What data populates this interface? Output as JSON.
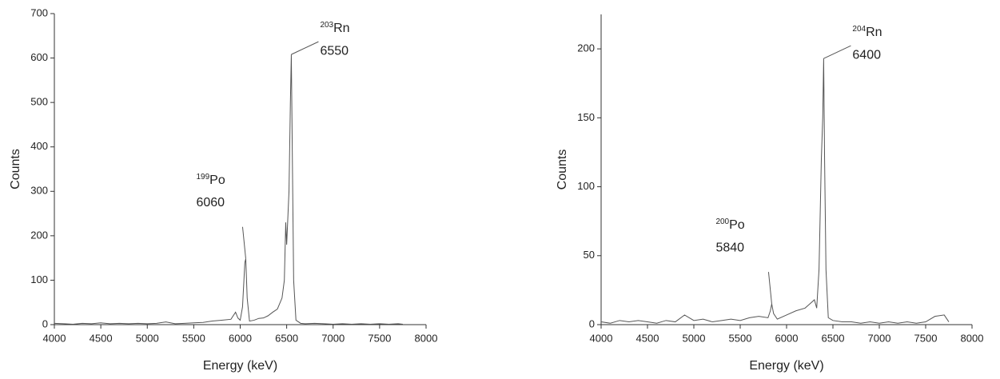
{
  "chart_data": [
    {
      "type": "line",
      "xlabel": "Energy (keV)",
      "ylabel": "Counts",
      "color": "#555555",
      "x": [
        4000,
        4100,
        4200,
        4300,
        4400,
        4500,
        4600,
        4700,
        4800,
        4900,
        5000,
        5100,
        5200,
        5300,
        5400,
        5500,
        5600,
        5700,
        5800,
        5900,
        5950,
        5975,
        6000,
        6025,
        6050,
        6060,
        6075,
        6100,
        6150,
        6200,
        6250,
        6300,
        6350,
        6400,
        6450,
        6475,
        6490,
        6500,
        6525,
        6540,
        6550,
        6560,
        6575,
        6600,
        6650,
        6700,
        6800,
        6900,
        7000,
        7100,
        7200,
        7300,
        7400,
        7500,
        7600,
        7700,
        7750
      ],
      "values": [
        3,
        2,
        1,
        3,
        2,
        4,
        2,
        3,
        2,
        3,
        2,
        3,
        6,
        2,
        3,
        4,
        5,
        8,
        10,
        12,
        28,
        15,
        10,
        40,
        140,
        148,
        60,
        8,
        10,
        14,
        15,
        20,
        28,
        35,
        60,
        100,
        230,
        180,
        300,
        500,
        608,
        400,
        100,
        10,
        3,
        2,
        3,
        2,
        1,
        2,
        1,
        2,
        1,
        2,
        1,
        2,
        1
      ],
      "xlim": [
        4000,
        8000
      ],
      "xticks": [
        4000,
        4500,
        5000,
        5500,
        6000,
        6500,
        7000,
        7500,
        8000
      ],
      "ylim": [
        0,
        700
      ],
      "yticks": [
        0,
        100,
        200,
        300,
        400,
        500,
        600,
        700
      ],
      "annotations": [
        {
          "mass": "203",
          "element": "Rn",
          "energy": 6550
        },
        {
          "mass": "199",
          "element": "Po",
          "energy": 6060
        }
      ]
    },
    {
      "type": "line",
      "xlabel": "Energy (keV)",
      "ylabel": "Counts",
      "color": "#555555",
      "x": [
        4000,
        4100,
        4200,
        4300,
        4400,
        4500,
        4600,
        4700,
        4800,
        4900,
        5000,
        5100,
        5200,
        5300,
        5400,
        5500,
        5600,
        5700,
        5800,
        5825,
        5840,
        5860,
        5900,
        6000,
        6100,
        6200,
        6250,
        6300,
        6325,
        6350,
        6375,
        6390,
        6400,
        6410,
        6425,
        6450,
        6500,
        6600,
        6700,
        6800,
        6900,
        7000,
        7100,
        7200,
        7300,
        7400,
        7500,
        7600,
        7700,
        7750
      ],
      "values": [
        2,
        1,
        3,
        2,
        3,
        2,
        1,
        3,
        2,
        7,
        3,
        4,
        2,
        3,
        4,
        3,
        5,
        6,
        5,
        10,
        15,
        8,
        4,
        7,
        10,
        12,
        15,
        18,
        12,
        40,
        120,
        150,
        193,
        120,
        40,
        5,
        3,
        2,
        2,
        1,
        2,
        1,
        2,
        1,
        2,
        1,
        2,
        6,
        7,
        2
      ],
      "xlim": [
        4000,
        8000
      ],
      "xticks": [
        4000,
        4500,
        5000,
        5500,
        6000,
        6500,
        7000,
        7500,
        8000
      ],
      "ylim": [
        0,
        225
      ],
      "yticks": [
        0,
        50,
        100,
        150,
        200
      ],
      "annotations": [
        {
          "mass": "204",
          "element": "Rn",
          "energy": 6400
        },
        {
          "mass": "200",
          "element": "Po",
          "energy": 5840
        }
      ]
    }
  ]
}
